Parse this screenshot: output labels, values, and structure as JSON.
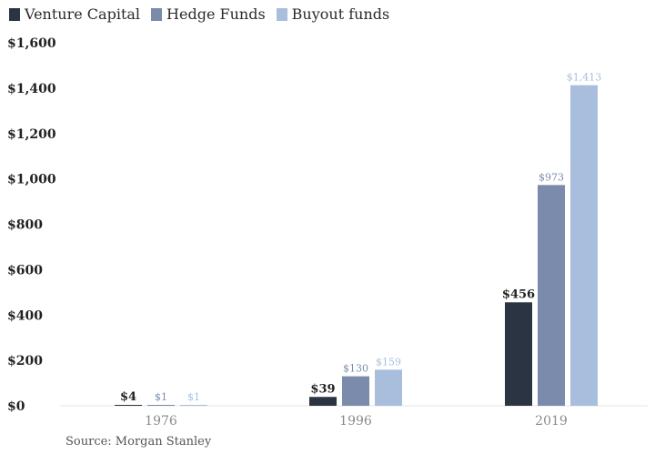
{
  "chart_data": {
    "type": "bar",
    "categories": [
      "1976",
      "1996",
      "2019"
    ],
    "series": [
      {
        "name": "Venture Capital",
        "color": "#2b3442",
        "values": [
          4,
          39,
          456
        ],
        "labels": [
          "$4",
          "$39",
          "$456"
        ]
      },
      {
        "name": "Hedge Funds",
        "color": "#7b8bab",
        "values": [
          1,
          130,
          973
        ],
        "labels": [
          "$1",
          "$130",
          "$973"
        ]
      },
      {
        "name": "Buyout funds",
        "color": "#a9bedc",
        "values": [
          1,
          159,
          1413
        ],
        "labels": [
          "$1",
          "$159",
          "$1,413"
        ]
      }
    ],
    "ylim": [
      0,
      1600
    ],
    "yticks": [
      0,
      200,
      400,
      600,
      800,
      1000,
      1200,
      1400,
      1600
    ],
    "ytick_labels": [
      "$0",
      "$200",
      "$400",
      "$600",
      "$800",
      "$1,000",
      "$1,200",
      "$1,400",
      "$1,600"
    ],
    "legend_position": "top-left",
    "grid": false,
    "title": "",
    "xlabel": "",
    "ylabel": ""
  },
  "source": "Source: Morgan Stanley"
}
